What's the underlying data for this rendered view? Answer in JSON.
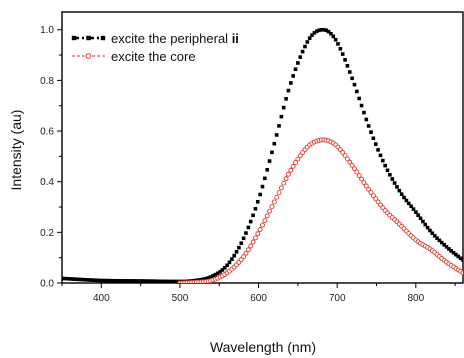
{
  "chart_data": {
    "type": "scatter",
    "xlabel": "Wavelength (nm)",
    "ylabel": "Intensity (au)",
    "xlim": [
      350,
      860
    ],
    "ylim": [
      0,
      1.07
    ],
    "x_ticks": [
      400,
      500,
      600,
      700,
      800
    ],
    "y_ticks": [
      0.0,
      0.2,
      0.4,
      0.6,
      0.8,
      1.0
    ],
    "x_tick_labels": [
      "400",
      "500",
      "600",
      "700",
      "800"
    ],
    "y_tick_labels": [
      "0.0",
      "0.2",
      "0.4",
      "0.6",
      "0.8",
      "1.0"
    ],
    "grid": false,
    "legend_position": "top-left",
    "series": [
      {
        "name": "excite the peripheral ",
        "name_bold_suffix": "ii",
        "marker": "filled-square",
        "line_style": "dash-dot",
        "color": "#000000",
        "peak_x": 682,
        "x": [
          350,
          400,
          450,
          500,
          520,
          540,
          560,
          580,
          600,
          620,
          640,
          660,
          670,
          682,
          690,
          700,
          720,
          740,
          760,
          780,
          800,
          820,
          840,
          860
        ],
        "y": [
          0.018,
          0.01,
          0.008,
          0.006,
          0.01,
          0.025,
          0.07,
          0.17,
          0.33,
          0.55,
          0.78,
          0.94,
          0.985,
          1.0,
          0.99,
          0.95,
          0.8,
          0.62,
          0.47,
          0.36,
          0.28,
          0.2,
          0.14,
          0.09
        ]
      },
      {
        "name": "excite the core",
        "name_bold_suffix": "",
        "marker": "open-circle",
        "line_style": "dashed",
        "color": "#e03a2c",
        "peak_x": 682,
        "x": [
          500,
          520,
          540,
          560,
          580,
          600,
          620,
          640,
          660,
          670,
          682,
          690,
          700,
          720,
          740,
          760,
          780,
          800,
          820,
          840,
          860
        ],
        "y": [
          0.0,
          0.003,
          0.01,
          0.04,
          0.1,
          0.2,
          0.32,
          0.44,
          0.53,
          0.555,
          0.565,
          0.56,
          0.54,
          0.46,
          0.37,
          0.29,
          0.23,
          0.17,
          0.13,
          0.08,
          0.04
        ]
      }
    ]
  }
}
